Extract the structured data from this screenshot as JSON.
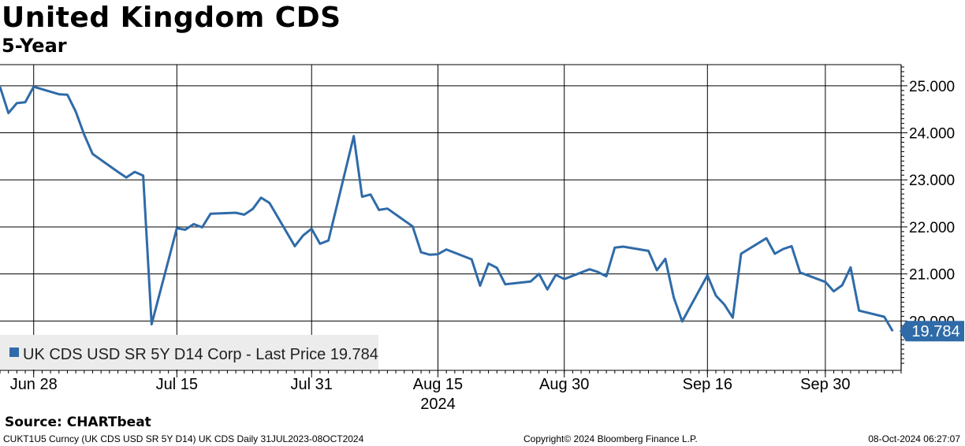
{
  "header": {
    "title": "United Kingdom CDS",
    "subtitle": "5-Year"
  },
  "footer": {
    "source": "Source: CHARTbeat",
    "ticker_info": "CUKT1U5 Curncy (UK CDS USD SR 5Y D14) UK CDS  Daily 31JUL2023-08OCT2024",
    "copyright": "Copyright© 2024 Bloomberg Finance L.P.",
    "timestamp": "08-Oct-2024 06:27:07"
  },
  "colors": {
    "line": "#2f6ba8",
    "last_price_tag": "#2f6ba8",
    "legend_bg": "#ececec",
    "grid": "#000000"
  },
  "chart_data": {
    "type": "line",
    "title": "United Kingdom CDS",
    "subtitle": "5-Year",
    "xlabel": "",
    "ylabel": "",
    "grid": true,
    "y_axis_side": "right",
    "ylim": [
      18.95,
      25.45
    ],
    "xlim": [
      "2024-06-24",
      "2024-10-09"
    ],
    "y_ticks": [
      20.0,
      21.0,
      22.0,
      23.0,
      24.0,
      25.0
    ],
    "y_tick_labels": [
      "20.000",
      "21.000",
      "22.000",
      "23.000",
      "24.000",
      "25.000"
    ],
    "x_ticks": [
      {
        "date": "2024-06-28",
        "label": "Jun 28"
      },
      {
        "date": "2024-07-15",
        "label": "Jul 15"
      },
      {
        "date": "2024-07-31",
        "label": "Jul 31"
      },
      {
        "date": "2024-08-15",
        "label": "Aug 15"
      },
      {
        "date": "2024-08-30",
        "label": "Aug 30"
      },
      {
        "date": "2024-09-16",
        "label": "Sep 16"
      },
      {
        "date": "2024-09-30",
        "label": "Sep 30"
      }
    ],
    "year_label": "2024",
    "legend": {
      "position": "bottom-left",
      "entry": "UK CDS USD SR 5Y D14 Corp - Last Price 19.784"
    },
    "last_price_label": "19.784",
    "series": [
      {
        "name": "UK CDS USD SR 5Y D14 Corp - Last Price",
        "points": [
          {
            "x": "2024-06-24",
            "y": 24.98
          },
          {
            "x": "2024-06-25",
            "y": 24.42
          },
          {
            "x": "2024-06-26",
            "y": 24.63
          },
          {
            "x": "2024-06-27",
            "y": 24.65
          },
          {
            "x": "2024-06-28",
            "y": 24.98
          },
          {
            "x": "2024-07-01",
            "y": 24.82
          },
          {
            "x": "2024-07-02",
            "y": 24.81
          },
          {
            "x": "2024-07-03",
            "y": 24.45
          },
          {
            "x": "2024-07-04",
            "y": 23.96
          },
          {
            "x": "2024-07-05",
            "y": 23.55
          },
          {
            "x": "2024-07-08",
            "y": 23.17
          },
          {
            "x": "2024-07-09",
            "y": 23.05
          },
          {
            "x": "2024-07-10",
            "y": 23.17
          },
          {
            "x": "2024-07-11",
            "y": 23.09
          },
          {
            "x": "2024-07-12",
            "y": 19.93
          },
          {
            "x": "2024-07-15",
            "y": 21.97
          },
          {
            "x": "2024-07-16",
            "y": 21.94
          },
          {
            "x": "2024-07-17",
            "y": 22.06
          },
          {
            "x": "2024-07-18",
            "y": 21.99
          },
          {
            "x": "2024-07-19",
            "y": 22.28
          },
          {
            "x": "2024-07-22",
            "y": 22.3
          },
          {
            "x": "2024-07-23",
            "y": 22.26
          },
          {
            "x": "2024-07-24",
            "y": 22.38
          },
          {
            "x": "2024-07-25",
            "y": 22.62
          },
          {
            "x": "2024-07-26",
            "y": 22.51
          },
          {
            "x": "2024-07-29",
            "y": 21.59
          },
          {
            "x": "2024-07-30",
            "y": 21.82
          },
          {
            "x": "2024-07-31",
            "y": 21.96
          },
          {
            "x": "2024-08-01",
            "y": 21.64
          },
          {
            "x": "2024-08-02",
            "y": 21.71
          },
          {
            "x": "2024-08-05",
            "y": 23.93
          },
          {
            "x": "2024-08-06",
            "y": 22.64
          },
          {
            "x": "2024-08-07",
            "y": 22.69
          },
          {
            "x": "2024-08-08",
            "y": 22.36
          },
          {
            "x": "2024-08-09",
            "y": 22.39
          },
          {
            "x": "2024-08-12",
            "y": 22.01
          },
          {
            "x": "2024-08-13",
            "y": 21.46
          },
          {
            "x": "2024-08-14",
            "y": 21.41
          },
          {
            "x": "2024-08-15",
            "y": 21.42
          },
          {
            "x": "2024-08-16",
            "y": 21.52
          },
          {
            "x": "2024-08-19",
            "y": 21.31
          },
          {
            "x": "2024-08-20",
            "y": 20.75
          },
          {
            "x": "2024-08-21",
            "y": 21.22
          },
          {
            "x": "2024-08-22",
            "y": 21.13
          },
          {
            "x": "2024-08-23",
            "y": 20.78
          },
          {
            "x": "2024-08-26",
            "y": 20.84
          },
          {
            "x": "2024-08-27",
            "y": 21.0
          },
          {
            "x": "2024-08-28",
            "y": 20.67
          },
          {
            "x": "2024-08-29",
            "y": 20.98
          },
          {
            "x": "2024-08-30",
            "y": 20.89
          },
          {
            "x": "2024-09-02",
            "y": 21.1
          },
          {
            "x": "2024-09-03",
            "y": 21.04
          },
          {
            "x": "2024-09-04",
            "y": 20.95
          },
          {
            "x": "2024-09-05",
            "y": 21.56
          },
          {
            "x": "2024-09-06",
            "y": 21.58
          },
          {
            "x": "2024-09-09",
            "y": 21.49
          },
          {
            "x": "2024-09-10",
            "y": 21.08
          },
          {
            "x": "2024-09-11",
            "y": 21.32
          },
          {
            "x": "2024-09-12",
            "y": 20.5
          },
          {
            "x": "2024-09-13",
            "y": 19.99
          },
          {
            "x": "2024-09-16",
            "y": 20.97
          },
          {
            "x": "2024-09-17",
            "y": 20.54
          },
          {
            "x": "2024-09-18",
            "y": 20.35
          },
          {
            "x": "2024-09-19",
            "y": 20.07
          },
          {
            "x": "2024-09-20",
            "y": 21.43
          },
          {
            "x": "2024-09-23",
            "y": 21.76
          },
          {
            "x": "2024-09-24",
            "y": 21.43
          },
          {
            "x": "2024-09-25",
            "y": 21.53
          },
          {
            "x": "2024-09-26",
            "y": 21.59
          },
          {
            "x": "2024-09-27",
            "y": 21.03
          },
          {
            "x": "2024-09-30",
            "y": 20.83
          },
          {
            "x": "2024-10-01",
            "y": 20.63
          },
          {
            "x": "2024-10-02",
            "y": 20.76
          },
          {
            "x": "2024-10-03",
            "y": 21.14
          },
          {
            "x": "2024-10-04",
            "y": 20.22
          },
          {
            "x": "2024-10-07",
            "y": 20.09
          },
          {
            "x": "2024-10-08",
            "y": 19.784
          }
        ]
      }
    ]
  }
}
